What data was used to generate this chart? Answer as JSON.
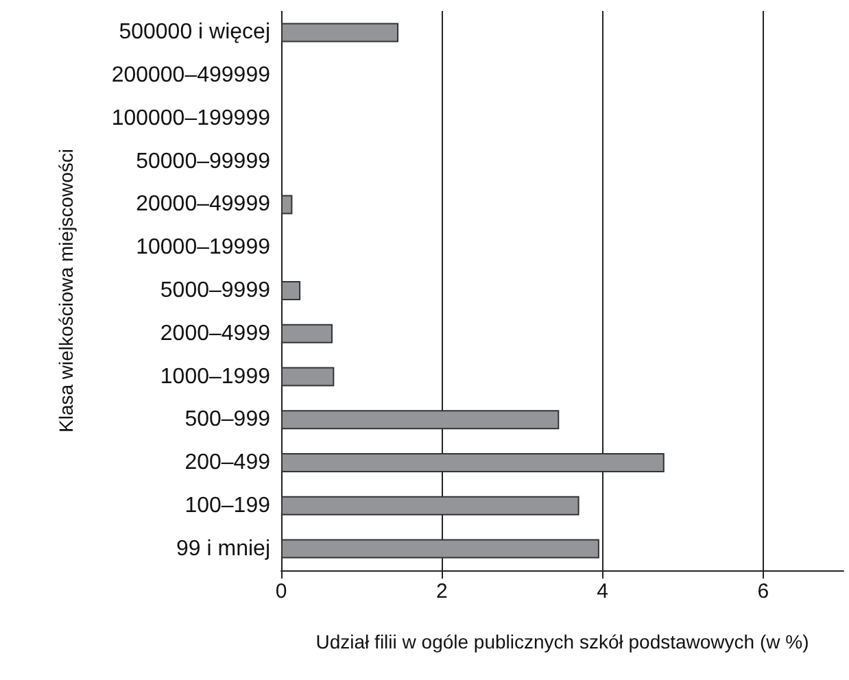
{
  "chart_data": {
    "type": "bar",
    "orientation": "horizontal",
    "xlabel": "Udział filii w ogóle publicznych szkół podstawowych (w %)",
    "ylabel": "Klasa wielkościowa miejscowości",
    "categories": [
      "500000 i więcej",
      "200000–499999",
      "100000–199999",
      "50000–99999",
      "20000–49999",
      "10000–19999",
      "5000–9999",
      "2000–4999",
      "1000–1999",
      "500–999",
      "200–499",
      "100–199",
      "99 i mniej"
    ],
    "values": [
      1.46,
      0,
      0,
      0,
      0.14,
      0,
      0.24,
      0.64,
      0.66,
      3.46,
      4.77,
      3.71,
      3.96
    ],
    "color": "#939598",
    "xlim": [
      0,
      7
    ],
    "xticks": [
      0,
      2,
      4,
      6
    ],
    "grid": "x"
  }
}
